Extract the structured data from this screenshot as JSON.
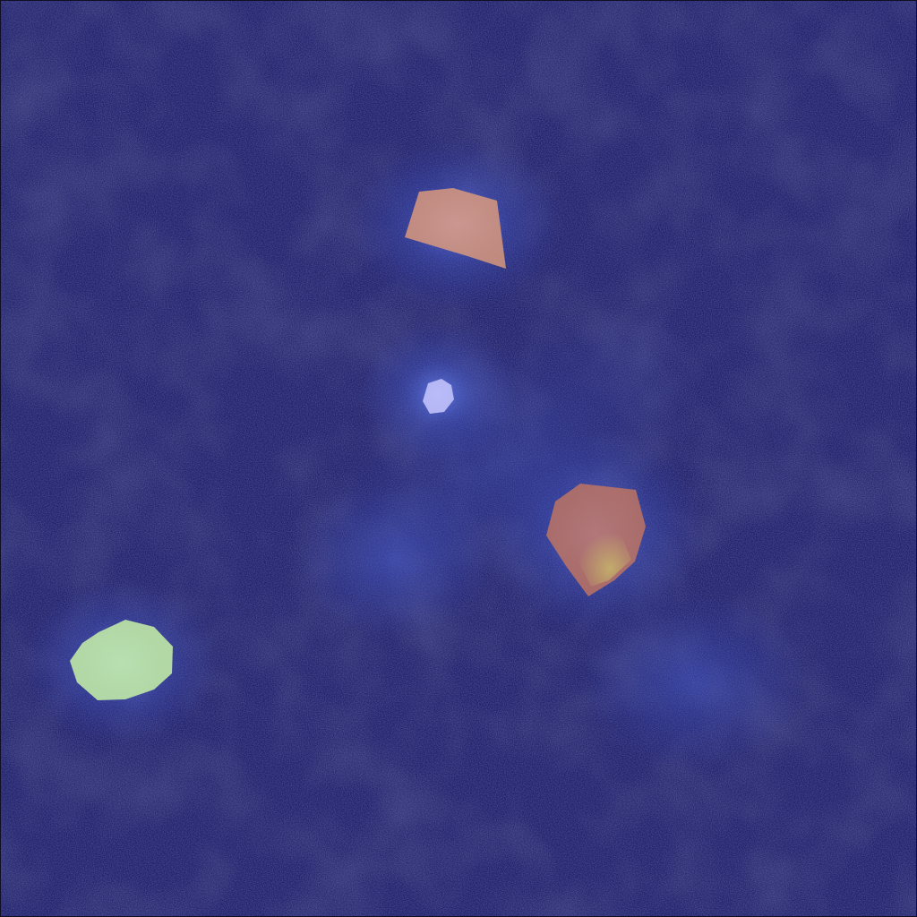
{
  "image": {
    "kind": "fluorescence-micrograph",
    "palette": {
      "background_deep": "#1e1c58",
      "background_mid": "#2d2f7a",
      "signal_glow": "#4a63d6",
      "signal_bright": "#7fa0ff",
      "frame": "#0f0f25"
    }
  },
  "masks": [
    {
      "id": "mask-1",
      "label_class": "orange",
      "color": "#e8a07a"
    },
    {
      "id": "mask-2",
      "label_class": "lavender",
      "color": "#c9c8ff"
    },
    {
      "id": "mask-3",
      "label_class": "orange-red",
      "color": "#c9785e"
    },
    {
      "id": "mask-4",
      "label_class": "green",
      "color": "#c8f2a8"
    }
  ]
}
